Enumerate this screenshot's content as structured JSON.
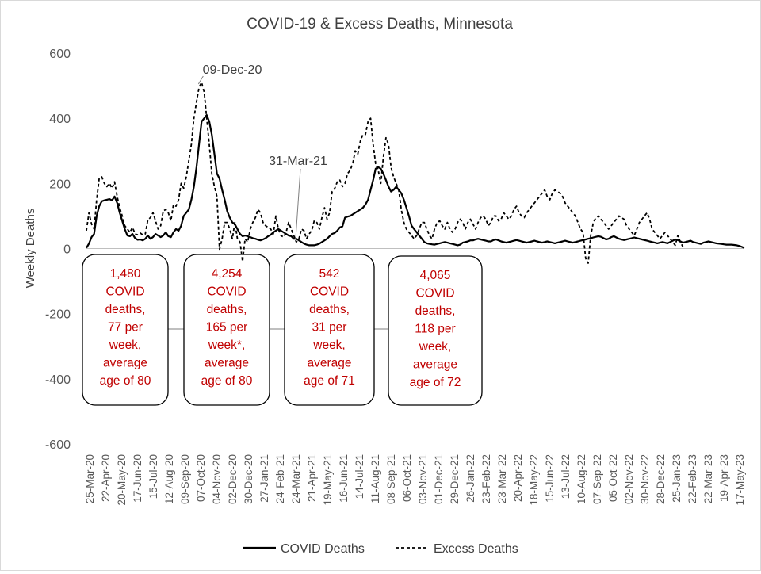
{
  "chart_data": {
    "type": "line",
    "title": "COVID-19 & Excess Deaths, Minnesota",
    "xlabel": "",
    "ylabel": "Weekly Deaths",
    "ylim": [
      -600,
      600
    ],
    "yticks": [
      "600",
      "400",
      "200",
      "0",
      "-200",
      "-400",
      "-600"
    ],
    "grid": false,
    "legend_position": "bottom",
    "x_tick_labels": [
      "25-Mar-20",
      "22-Apr-20",
      "20-May-20",
      "17-Jun-20",
      "15-Jul-20",
      "12-Aug-20",
      "09-Sep-20",
      "07-Oct-20",
      "04-Nov-20",
      "02-Dec-20",
      "30-Dec-20",
      "27-Jan-21",
      "24-Feb-21",
      "24-Mar-21",
      "21-Apr-21",
      "19-May-21",
      "16-Jun-21",
      "14-Jul-21",
      "11-Aug-21",
      "08-Sep-21",
      "06-Oct-21",
      "03-Nov-21",
      "01-Dec-21",
      "29-Dec-21",
      "26-Jan-22",
      "23-Feb-22",
      "23-Mar-22",
      "20-Apr-22",
      "18-May-22",
      "15-Jun-22",
      "13-Jul-22",
      "10-Aug-22",
      "07-Sep-22",
      "05-Oct-22",
      "02-Nov-22",
      "30-Nov-22",
      "28-Dec-22",
      "25-Jan-23",
      "22-Feb-23",
      "22-Mar-23",
      "19-Apr-23",
      "17-May-23"
    ],
    "series": [
      {
        "name": "COVID Deaths",
        "style": "solid",
        "color": "#000000",
        "values": [
          2,
          15,
          35,
          45,
          100,
          130,
          145,
          148,
          150,
          152,
          148,
          160,
          140,
          110,
          85,
          60,
          40,
          38,
          45,
          32,
          27,
          28,
          25,
          30,
          40,
          30,
          35,
          45,
          40,
          35,
          40,
          50,
          38,
          35,
          50,
          60,
          55,
          70,
          100,
          110,
          120,
          150,
          190,
          250,
          320,
          390,
          400,
          410,
          390,
          350,
          290,
          230,
          215,
          180,
          150,
          115,
          95,
          80,
          75,
          60,
          45,
          38,
          40,
          38,
          35,
          32,
          30,
          27,
          25,
          28,
          32,
          38,
          42,
          50,
          55,
          60,
          55,
          50,
          45,
          40,
          38,
          30,
          30,
          25,
          20,
          15,
          12,
          10,
          10,
          10,
          12,
          15,
          20,
          25,
          30,
          38,
          45,
          48,
          55,
          65,
          68,
          95,
          98,
          100,
          105,
          110,
          115,
          120,
          125,
          135,
          150,
          180,
          210,
          245,
          250,
          245,
          230,
          210,
          190,
          175,
          180,
          190,
          180,
          170,
          150,
          125,
          100,
          70,
          60,
          50,
          40,
          30,
          20,
          16,
          14,
          13,
          12,
          14,
          16,
          18,
          20,
          18,
          16,
          14,
          12,
          10,
          12,
          18,
          20,
          22,
          25,
          25,
          28,
          30,
          28,
          26,
          24,
          22,
          22,
          26,
          28,
          25,
          22,
          20,
          18,
          20,
          22,
          24,
          26,
          24,
          22,
          20,
          18,
          20,
          22,
          24,
          22,
          20,
          18,
          20,
          22,
          20,
          18,
          16,
          18,
          20,
          22,
          24,
          22,
          20,
          18,
          20,
          22,
          24,
          26,
          28,
          30,
          32,
          34,
          36,
          38,
          36,
          32,
          28,
          30,
          35,
          38,
          34,
          30,
          28,
          26,
          28,
          30,
          32,
          34,
          32,
          30,
          28,
          26,
          24,
          22,
          20,
          18,
          16,
          18,
          20,
          18,
          16,
          20,
          24,
          28,
          26,
          22,
          18,
          20,
          22,
          24,
          20,
          18,
          16,
          14,
          18,
          20,
          22,
          20,
          18,
          16,
          15,
          14,
          13,
          12,
          12,
          12,
          11,
          10,
          8,
          5,
          2
        ],
        "stride": 1
      },
      {
        "name": "Excess Deaths",
        "style": "dashed",
        "color": "#000000",
        "values": [
          55,
          110,
          75,
          60,
          150,
          215,
          220,
          200,
          190,
          200,
          185,
          205,
          160,
          125,
          100,
          70,
          60,
          50,
          65,
          45,
          42,
          48,
          42,
          45,
          88,
          95,
          110,
          85,
          60,
          70,
          115,
          120,
          110,
          85,
          135,
          130,
          150,
          200,
          185,
          220,
          270,
          320,
          400,
          450,
          495,
          510,
          480,
          400,
          320,
          230,
          190,
          160,
          -2,
          30,
          80,
          80,
          60,
          30,
          80,
          30,
          20,
          -40,
          30,
          20,
          60,
          80,
          95,
          120,
          110,
          80,
          70,
          65,
          60,
          45,
          100,
          60,
          40,
          35,
          50,
          80,
          60,
          40,
          20,
          30,
          60,
          55,
          30,
          45,
          55,
          85,
          80,
          60,
          95,
          125,
          90,
          110,
          175,
          185,
          205,
          210,
          190,
          200,
          230,
          240,
          260,
          300,
          290,
          330,
          350,
          350,
          390,
          400,
          320,
          260,
          240,
          200,
          280,
          340,
          320,
          250,
          220,
          200,
          180,
          120,
          80,
          60,
          50,
          40,
          30,
          40,
          60,
          80,
          80,
          60,
          40,
          30,
          60,
          80,
          85,
          70,
          60,
          80,
          60,
          50,
          60,
          80,
          90,
          80,
          60,
          80,
          90,
          75,
          60,
          80,
          95,
          100,
          90,
          70,
          80,
          100,
          100,
          85,
          90,
          110,
          100,
          90,
          100,
          120,
          130,
          110,
          100,
          95,
          110,
          120,
          130,
          140,
          150,
          160,
          170,
          180,
          160,
          150,
          170,
          180,
          175,
          170,
          160,
          140,
          130,
          120,
          110,
          100,
          80,
          60,
          50,
          -30,
          -45,
          40,
          80,
          95,
          100,
          90,
          80,
          70,
          60,
          70,
          80,
          90,
          100,
          95,
          90,
          70,
          60,
          50,
          40,
          60,
          80,
          90,
          100,
          110,
          90,
          60,
          50,
          40,
          30,
          40,
          50,
          40,
          30,
          20,
          10,
          40,
          20,
          5
        ],
        "stride": 1
      }
    ],
    "annotations": [
      {
        "text": "09-Dec-20"
      },
      {
        "text": "31-Mar-21"
      }
    ],
    "callouts": [
      {
        "lines": [
          "1,480",
          "COVID",
          "deaths,",
          "77 per",
          "week,",
          "average",
          "age of 80"
        ]
      },
      {
        "lines": [
          "4,254",
          "COVID",
          "deaths,",
          "165 per",
          "week*,",
          "average",
          "age of 80"
        ]
      },
      {
        "lines": [
          "542",
          "COVID",
          "deaths,",
          "31 per",
          "week,",
          "average",
          "age of 71"
        ]
      },
      {
        "lines": [
          "4,065",
          "COVID",
          "deaths,",
          "118 per",
          "week,",
          "average",
          "age of 72"
        ]
      }
    ]
  }
}
